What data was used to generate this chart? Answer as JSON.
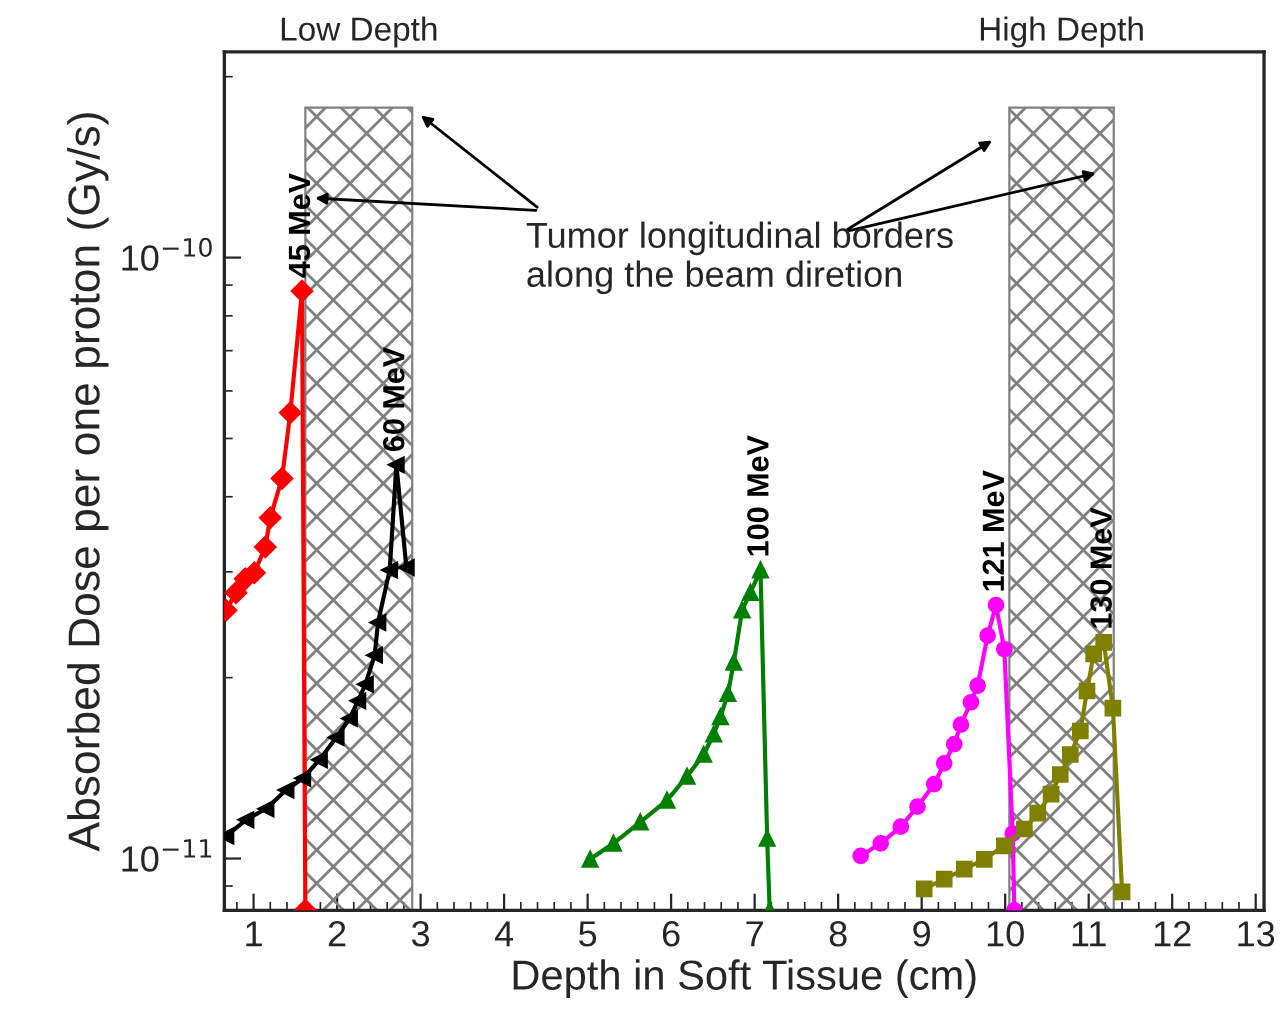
{
  "chart_data": {
    "type": "line",
    "xlabel": "Depth in Soft Tissue (cm)",
    "ylabel": "Absorbed Dose per one proton (Gy/s)",
    "log": "y",
    "xlim": [
      0.65,
      13.1
    ],
    "ylim": [
      8.2e-12,
      2.2e-10
    ],
    "xticks": [
      1,
      2,
      3,
      4,
      5,
      6,
      7,
      8,
      9,
      10,
      11,
      12,
      13
    ],
    "yticks": [
      {
        "value": 1e-11,
        "label": "10$^{−11}$"
      },
      {
        "value": 1e-10,
        "label": "10$^{−10}$"
      }
    ],
    "grid": false,
    "legend": false,
    "line_style": "solid",
    "series": [
      {
        "name": "45 MeV",
        "color": "#ff0000",
        "marker": "diamond",
        "x": [
          0.67,
          0.79,
          0.9,
          1.01,
          1.14,
          1.2,
          1.34,
          1.44,
          1.58,
          1.62
        ],
        "values": [
          2.59e-11,
          2.77e-11,
          2.92e-11,
          2.99e-11,
          3.3e-11,
          3.69e-11,
          4.29e-11,
          5.52e-11,
          8.8e-11,
          8.2e-12
        ]
      },
      {
        "name": "60 MeV",
        "color": "#000000",
        "marker": "triangle_left",
        "x": [
          0.67,
          0.91,
          1.15,
          1.39,
          1.59,
          1.79,
          1.99,
          2.15,
          2.25,
          2.34,
          2.45,
          2.49,
          2.63,
          2.71,
          2.83
        ],
        "values": [
          1.09e-11,
          1.16e-11,
          1.21e-11,
          1.3e-11,
          1.36e-11,
          1.46e-11,
          1.59e-11,
          1.71e-11,
          1.83e-11,
          1.95e-11,
          2.18e-11,
          2.47e-11,
          3.02e-11,
          4.52e-11,
          3.05e-11
        ]
      },
      {
        "name": "100 MeV",
        "color": "#008000",
        "marker": "triangle",
        "x": [
          5.03,
          5.31,
          5.63,
          5.95,
          6.19,
          6.39,
          6.51,
          6.59,
          6.68,
          6.75,
          6.85,
          6.95,
          7.07,
          7.15,
          7.18
        ],
        "values": [
          9.97e-12,
          1.06e-11,
          1.15e-11,
          1.25e-11,
          1.37e-11,
          1.49e-11,
          1.61e-11,
          1.72e-11,
          1.88e-11,
          2.12e-11,
          2.59e-11,
          2.77e-11,
          3.02e-11,
          1.08e-11,
          8.2e-12
        ]
      },
      {
        "name": "121 MeV",
        "color": "#ff00ff",
        "marker": "circle",
        "x": [
          8.27,
          8.51,
          8.75,
          8.95,
          9.15,
          9.27,
          9.39,
          9.47,
          9.59,
          9.67,
          9.79,
          9.89,
          9.99,
          10.09,
          10.11
        ],
        "values": [
          1.01e-11,
          1.06e-11,
          1.13e-11,
          1.22e-11,
          1.33e-11,
          1.44e-11,
          1.55e-11,
          1.67e-11,
          1.82e-11,
          1.94e-11,
          2.35e-11,
          2.64e-11,
          2.23e-11,
          1.1e-11,
          8.2e-12
        ]
      },
      {
        "name": "130 MeV",
        "color": "#808000",
        "marker": "square",
        "x": [
          9.03,
          9.27,
          9.51,
          9.75,
          9.99,
          10.23,
          10.39,
          10.55,
          10.66,
          10.78,
          10.9,
          10.98,
          11.06,
          11.18,
          11.29,
          11.4
        ],
        "values": [
          8.9e-12,
          9.24e-12,
          9.6e-12,
          9.97e-12,
          1.05e-11,
          1.12e-11,
          1.19e-11,
          1.28e-11,
          1.38e-11,
          1.49e-11,
          1.63e-11,
          1.9e-11,
          2.19e-11,
          2.29e-11,
          1.78e-11,
          8.8e-12
        ]
      }
    ],
    "bands": [
      {
        "axis": "x",
        "from": 1.62,
        "to": 2.9,
        "label": "Low Depth",
        "color": "#808080"
      },
      {
        "axis": "x",
        "from": 10.05,
        "to": 11.3,
        "label": "High Depth",
        "color": "#808080"
      }
    ],
    "annotations": [
      "Tumor longitudinal borders\nalong the beam diretion"
    ]
  }
}
